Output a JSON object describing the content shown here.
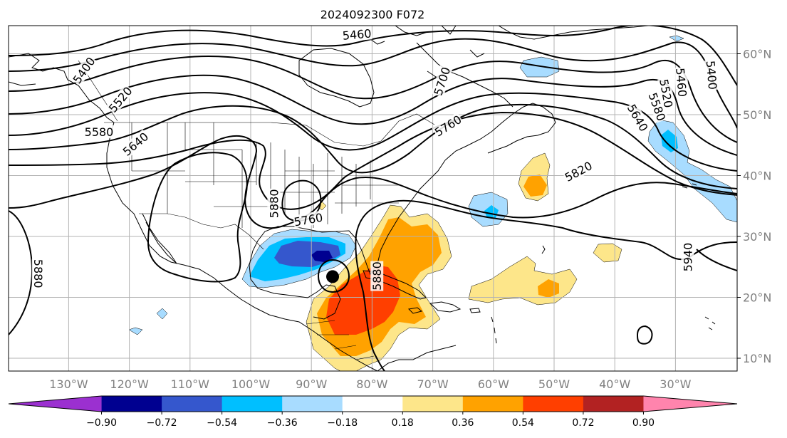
{
  "title": "2024092300 F072",
  "longitude_ticks": [
    {
      "label": "130°W",
      "lon": -130
    },
    {
      "label": "120°W",
      "lon": -120
    },
    {
      "label": "110°W",
      "lon": -110
    },
    {
      "label": "100°W",
      "lon": -100
    },
    {
      "label": "90°W",
      "lon": -90
    },
    {
      "label": "80°W",
      "lon": -80
    },
    {
      "label": "70°W",
      "lon": -70
    },
    {
      "label": "60°W",
      "lon": -60
    },
    {
      "label": "50°W",
      "lon": -50
    },
    {
      "label": "40°W",
      "lon": -40
    },
    {
      "label": "30°W",
      "lon": -30
    }
  ],
  "latitude_ticks": [
    {
      "label": "60°N",
      "lat": 60
    },
    {
      "label": "50°N",
      "lat": 50
    },
    {
      "label": "40°N",
      "lat": 40
    },
    {
      "label": "30°N",
      "lat": 30
    },
    {
      "label": "20°N",
      "lat": 20
    },
    {
      "label": "10°N",
      "lat": 10
    }
  ],
  "contour_labels": [
    {
      "text": "5460",
      "lon": -82.5,
      "lat": 63.2,
      "rot": -5
    },
    {
      "text": "5400",
      "lon": -127.5,
      "lat": 57.3,
      "rot": -55
    },
    {
      "text": "5520",
      "lon": -121.5,
      "lat": 52.5,
      "rot": -50
    },
    {
      "text": "5580",
      "lon": -125.0,
      "lat": 47.2,
      "rot": 0
    },
    {
      "text": "5640",
      "lon": -119.0,
      "lat": 45.2,
      "rot": -40
    },
    {
      "text": "5700",
      "lon": -68.5,
      "lat": 55.5,
      "rot": -72
    },
    {
      "text": "5760",
      "lon": -67.5,
      "lat": 48.2,
      "rot": -32
    },
    {
      "text": "5880",
      "lon": -96.2,
      "lat": 35.4,
      "rot": -90
    },
    {
      "text": "5760",
      "lon": -90.5,
      "lat": 32.8,
      "rot": -10
    },
    {
      "text": "5820",
      "lon": -46.0,
      "lat": 40.7,
      "rot": -28
    },
    {
      "text": "5940",
      "lon": -28.0,
      "lat": 26.6,
      "rot": -90
    },
    {
      "text": "5880",
      "lon": -135.0,
      "lat": 23.9,
      "rot": 90
    },
    {
      "text": "5880",
      "lon": -79.2,
      "lat": 23.5,
      "rot": -90
    },
    {
      "text": "5640",
      "lon": -36.2,
      "lat": 49.5,
      "rot": 60
    },
    {
      "text": "5580",
      "lon": -33.0,
      "lat": 51.3,
      "rot": 70
    },
    {
      "text": "5520",
      "lon": -31.5,
      "lat": 53.5,
      "rot": 80
    },
    {
      "text": "5460",
      "lon": -29.0,
      "lat": 55.3,
      "rot": 85
    },
    {
      "text": "5400",
      "lon": -24.0,
      "lat": 56.5,
      "rot": 85
    }
  ],
  "storm_center": {
    "lon": -86.5,
    "lat": 23.4
  },
  "colorbar": {
    "colors": [
      "#9b30d0",
      "#000090",
      "#3557cd",
      "#00bfff",
      "#a8dcff",
      "#ffffff",
      "#fde68a",
      "#ffa200",
      "#ff3f00",
      "#b22222",
      "#ff84ad"
    ],
    "tick_labels": [
      "−0.90",
      "−0.72",
      "−0.54",
      "−0.36",
      "−0.18",
      "0.18",
      "0.36",
      "0.54",
      "0.72",
      "0.90"
    ]
  }
}
